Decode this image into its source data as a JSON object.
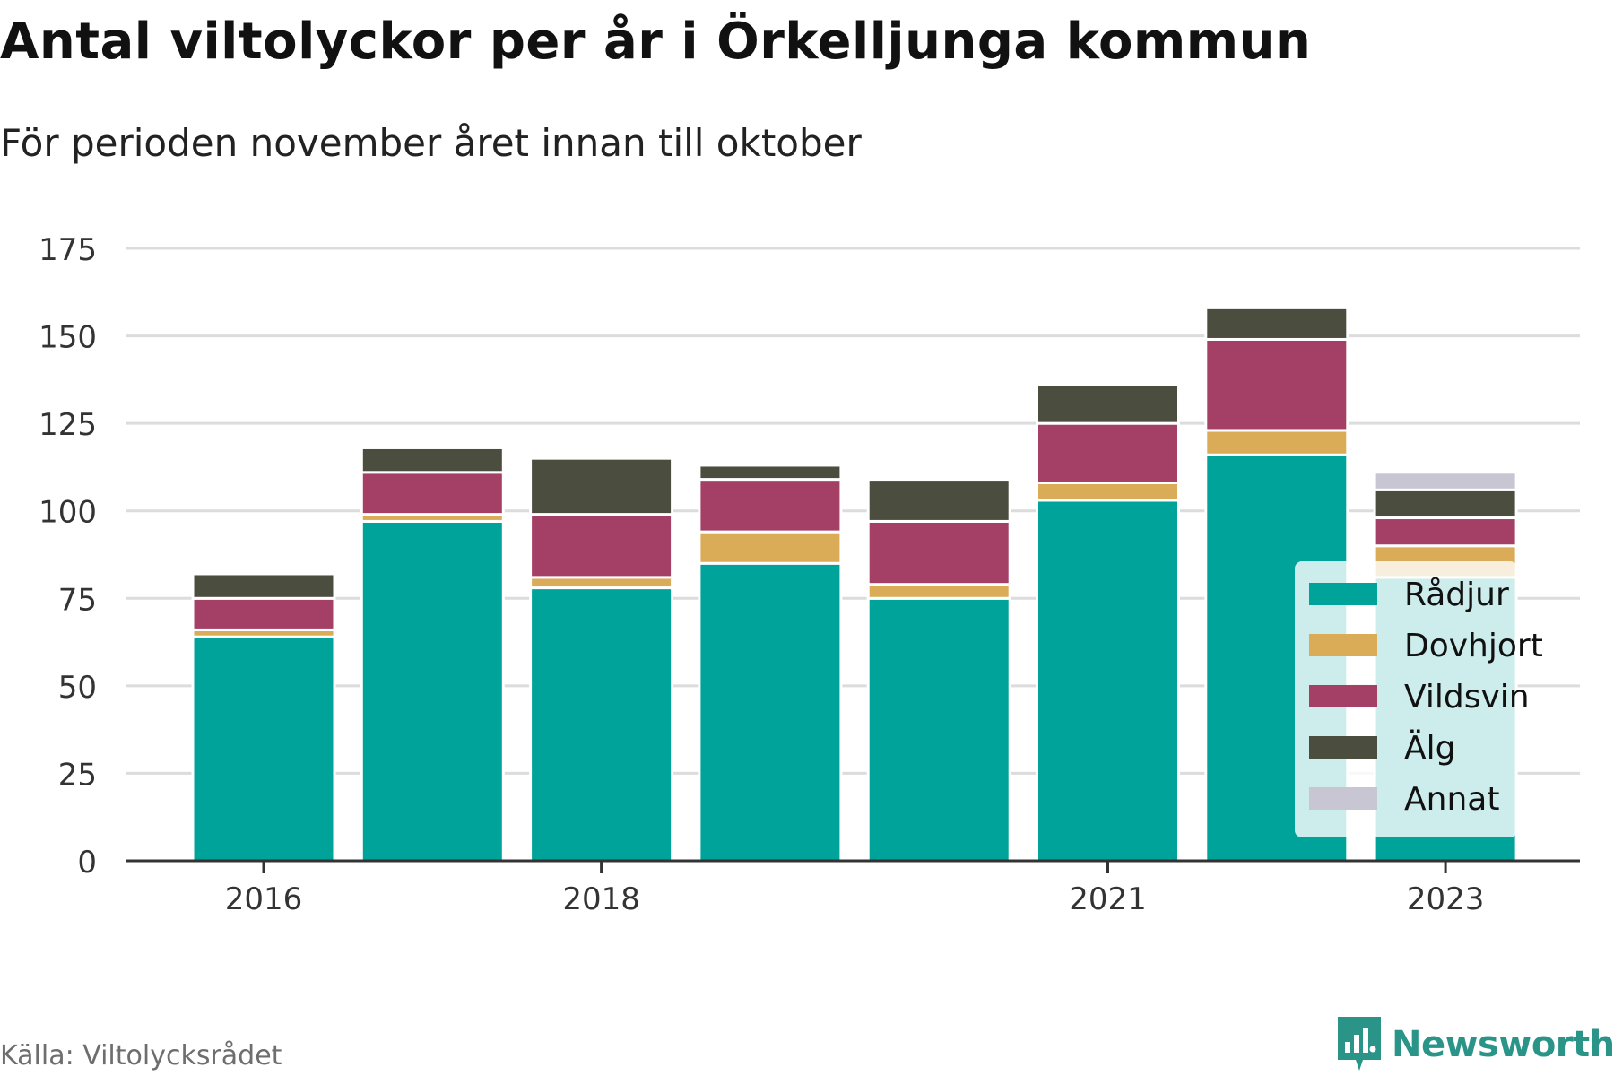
{
  "title": "Antal viltolyckor per år i Örkelljunga kommun",
  "subtitle": "För perioden november året innan till oktober",
  "source": "Källa: Viltolycksrådet",
  "brand": "Newsworthy",
  "colors": {
    "Rådjur": "#00a39a",
    "Dovhjort": "#dbac58",
    "Vildsvin": "#a44066",
    "Älg": "#4b4d3f",
    "Annat": "#c8c6d2",
    "grid": "#dcdcdc",
    "axis": "#333333",
    "brand": "#2a9488"
  },
  "chart_data": {
    "type": "bar",
    "stacked": true,
    "categories": [
      "2016",
      "2017",
      "2018",
      "2019",
      "2020",
      "2021",
      "2022",
      "2023"
    ],
    "x_tick_labels": [
      "2016",
      "2018",
      "2021",
      "2023"
    ],
    "y_ticks": [
      "0",
      "25",
      "50",
      "75",
      "100",
      "125",
      "150",
      "175"
    ],
    "ylim": [
      0,
      175
    ],
    "grid": true,
    "legend_position": "bottom-right",
    "series": [
      {
        "name": "Rådjur",
        "values": [
          64,
          97,
          78,
          85,
          75,
          103,
          116,
          81
        ]
      },
      {
        "name": "Dovhjort",
        "values": [
          2,
          2,
          3,
          9,
          4,
          5,
          7,
          9
        ]
      },
      {
        "name": "Vildsvin",
        "values": [
          9,
          12,
          18,
          15,
          18,
          17,
          26,
          8
        ]
      },
      {
        "name": "Älg",
        "values": [
          7,
          7,
          16,
          4,
          12,
          11,
          9,
          8
        ]
      },
      {
        "name": "Annat",
        "values": [
          0,
          0,
          0,
          0,
          0,
          0,
          0,
          5
        ]
      }
    ]
  }
}
